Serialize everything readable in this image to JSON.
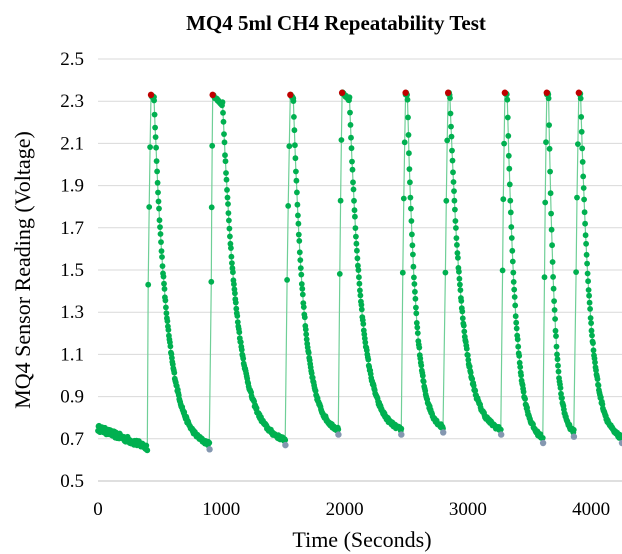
{
  "chart_data": {
    "type": "scatter",
    "title": "MQ4 5ml CH4 Repeatability Test",
    "xlabel": "Time (Seconds)",
    "ylabel": "MQ4 Sensor Reading (Voltage)",
    "xlim": [
      0,
      4250
    ],
    "ylim": [
      0.5,
      2.5
    ],
    "x_ticks": [
      0,
      1000,
      2000,
      3000,
      4000
    ],
    "y_ticks": [
      0.5,
      0.7,
      0.9,
      1.1,
      1.3,
      1.5,
      1.7,
      1.9,
      2.1,
      2.3,
      2.5
    ],
    "grid": "horizontal",
    "legend": "none",
    "series_color": "#00b050",
    "line_color": "#6fcf97",
    "peak_marker_color": "#c00000",
    "trough_marker_color": "#8497b0",
    "baseline": {
      "t_start": 0,
      "t_end": 400,
      "v_start": 0.75,
      "v_end": 0.66
    },
    "cycles": [
      {
        "rise_time": 400,
        "peak_time": 430,
        "peak_value": 2.33,
        "fall_start": 455,
        "trough_time": 905,
        "trough_value": 0.65
      },
      {
        "rise_time": 915,
        "peak_time": 930,
        "peak_value": 2.33,
        "fall_start": 1010,
        "trough_time": 1520,
        "trough_value": 0.67
      },
      {
        "rise_time": 1525,
        "peak_time": 1560,
        "peak_value": 2.33,
        "fall_start": 1585,
        "trough_time": 1950,
        "trough_value": 0.72
      },
      {
        "rise_time": 1955,
        "peak_time": 1980,
        "peak_value": 2.34,
        "fall_start": 2040,
        "trough_time": 2460,
        "trough_value": 0.72
      },
      {
        "rise_time": 2465,
        "peak_time": 2495,
        "peak_value": 2.34,
        "fall_start": 2510,
        "trough_time": 2800,
        "trough_value": 0.73
      },
      {
        "rise_time": 2810,
        "peak_time": 2840,
        "peak_value": 2.34,
        "fall_start": 2855,
        "trough_time": 3270,
        "trough_value": 0.72
      },
      {
        "rise_time": 3275,
        "peak_time": 3300,
        "peak_value": 2.34,
        "fall_start": 3320,
        "trough_time": 3610,
        "trough_value": 0.68
      },
      {
        "rise_time": 3615,
        "peak_time": 3640,
        "peak_value": 2.34,
        "fall_start": 3655,
        "trough_time": 3860,
        "trough_value": 0.71
      },
      {
        "rise_time": 3870,
        "peak_time": 3900,
        "peak_value": 2.34,
        "fall_start": 3915,
        "trough_time": 4250,
        "trough_value": 0.68
      }
    ]
  }
}
